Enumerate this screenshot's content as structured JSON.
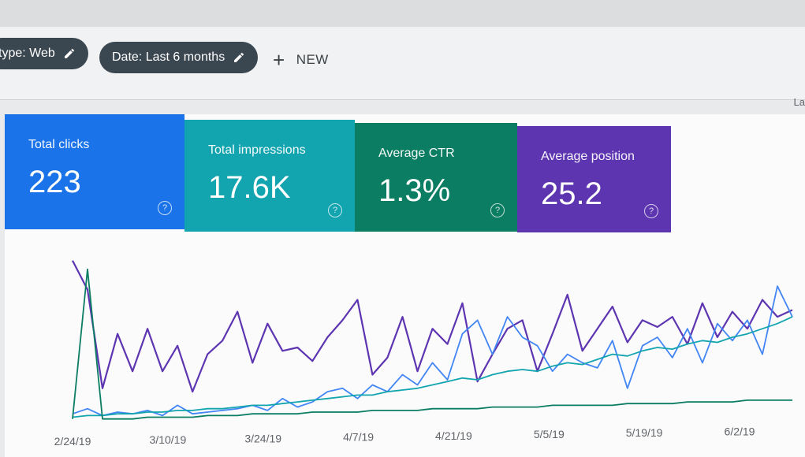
{
  "filters": {
    "chips": [
      {
        "label": "type: Web",
        "icon": "pencil-icon"
      },
      {
        "label": "Date: Last 6 months",
        "icon": "pencil-icon"
      }
    ],
    "new_button": {
      "icon": "plus-icon",
      "label": "NEW"
    },
    "edge_text": "La"
  },
  "metrics": [
    {
      "label": "Total clicks",
      "value": "223",
      "color": "#1a73e8",
      "icon": "help-circle-icon"
    },
    {
      "label": "Total impressions",
      "value": "17.6K",
      "color": "#12a4af",
      "icon": "help-circle-icon"
    },
    {
      "label": "Average CTR",
      "value": "1.3%",
      "color": "#0b7d62",
      "icon": "help-circle-icon"
    },
    {
      "label": "Average position",
      "value": "25.2",
      "color": "#5e35b1",
      "icon": "help-circle-icon"
    }
  ],
  "chart_data": {
    "type": "line",
    "x_tick_labels": [
      "2/24/19",
      "3/10/19",
      "3/24/19",
      "4/7/19",
      "4/21/19",
      "5/5/19",
      "5/19/19",
      "6/2/19"
    ],
    "series": [
      {
        "color": "#5e35b1",
        "values": [
          0.95,
          0.78,
          0.2,
          0.52,
          0.3,
          0.55,
          0.3,
          0.45,
          0.18,
          0.4,
          0.48,
          0.65,
          0.35,
          0.58,
          0.42,
          0.44,
          0.36,
          0.5,
          0.6,
          0.72,
          0.28,
          0.38,
          0.62,
          0.3,
          0.55,
          0.46,
          0.7,
          0.24,
          0.4,
          0.55,
          0.6,
          0.3,
          0.52,
          0.75,
          0.42,
          0.55,
          0.68,
          0.47,
          0.6,
          0.56,
          0.62,
          0.46,
          0.7,
          0.5,
          0.65,
          0.55,
          0.72,
          0.62,
          0.66
        ]
      },
      {
        "color": "#4285f4",
        "values": [
          0.05,
          0.08,
          0.04,
          0.06,
          0.05,
          0.07,
          0.04,
          0.1,
          0.05,
          0.06,
          0.07,
          0.08,
          0.1,
          0.07,
          0.14,
          0.09,
          0.12,
          0.18,
          0.2,
          0.14,
          0.22,
          0.18,
          0.28,
          0.22,
          0.35,
          0.25,
          0.52,
          0.6,
          0.4,
          0.62,
          0.5,
          0.45,
          0.3,
          0.4,
          0.35,
          0.32,
          0.48,
          0.2,
          0.45,
          0.5,
          0.38,
          0.55,
          0.35,
          0.58,
          0.48,
          0.6,
          0.4,
          0.8,
          0.62
        ]
      },
      {
        "color": "#12a4af",
        "values": [
          0.03,
          0.04,
          0.04,
          0.05,
          0.05,
          0.06,
          0.06,
          0.07,
          0.07,
          0.08,
          0.08,
          0.09,
          0.1,
          0.1,
          0.11,
          0.12,
          0.13,
          0.14,
          0.15,
          0.16,
          0.16,
          0.18,
          0.19,
          0.2,
          0.22,
          0.24,
          0.26,
          0.25,
          0.28,
          0.3,
          0.31,
          0.3,
          0.33,
          0.35,
          0.34,
          0.37,
          0.4,
          0.39,
          0.42,
          0.44,
          0.43,
          0.46,
          0.48,
          0.47,
          0.5,
          0.52,
          0.55,
          0.58,
          0.62
        ]
      },
      {
        "color": "#0b7d62",
        "values": [
          0.02,
          0.9,
          0.02,
          0.02,
          0.02,
          0.03,
          0.03,
          0.03,
          0.03,
          0.04,
          0.04,
          0.04,
          0.05,
          0.05,
          0.05,
          0.05,
          0.06,
          0.06,
          0.06,
          0.06,
          0.07,
          0.07,
          0.07,
          0.07,
          0.08,
          0.08,
          0.08,
          0.08,
          0.09,
          0.09,
          0.09,
          0.09,
          0.1,
          0.1,
          0.1,
          0.1,
          0.1,
          0.11,
          0.11,
          0.11,
          0.11,
          0.12,
          0.12,
          0.12,
          0.12,
          0.13,
          0.13,
          0.13,
          0.13
        ]
      }
    ]
  }
}
